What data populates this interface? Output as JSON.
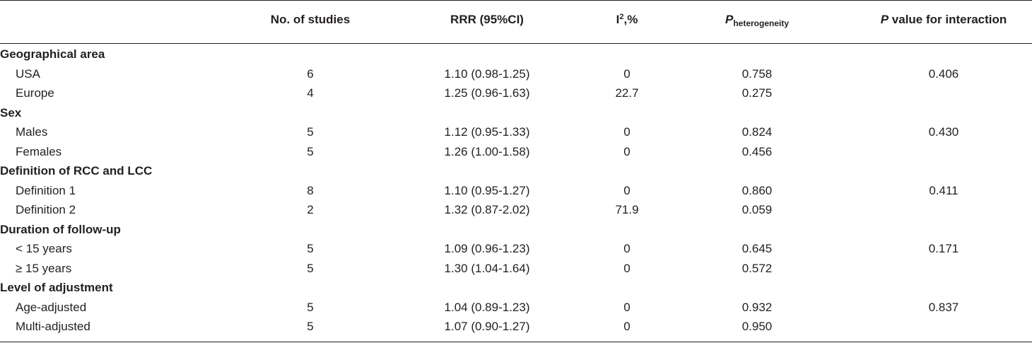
{
  "headers": {
    "studies": "No. of studies",
    "rrr": "RRR (95%CI)",
    "i2_base": "I",
    "i2_sup": "2",
    "i2_suffix": ",%",
    "phet_base": "P",
    "phet_sub": "heterogeneity",
    "pint_italic": "P",
    "pint_rest": " value for interaction"
  },
  "groups": [
    {
      "title": "Geographical area",
      "rows": [
        {
          "label": "USA",
          "studies": "6",
          "rrr": "1.10 (0.98-1.25)",
          "i2": "0",
          "phet": "0.758",
          "pint": "0.406"
        },
        {
          "label": "Europe",
          "studies": "4",
          "rrr": "1.25 (0.96-1.63)",
          "i2": "22.7",
          "phet": "0.275",
          "pint": ""
        }
      ]
    },
    {
      "title": "Sex",
      "rows": [
        {
          "label": "Males",
          "studies": "5",
          "rrr": "1.12 (0.95-1.33)",
          "i2": "0",
          "phet": "0.824",
          "pint": "0.430"
        },
        {
          "label": "Females",
          "studies": "5",
          "rrr": "1.26 (1.00-1.58)",
          "i2": "0",
          "phet": "0.456",
          "pint": ""
        }
      ]
    },
    {
      "title": "Definition of RCC and LCC",
      "rows": [
        {
          "label": "Definition 1",
          "studies": "8",
          "rrr": "1.10 (0.95-1.27)",
          "i2": "0",
          "phet": "0.860",
          "pint": "0.411"
        },
        {
          "label": "Definition 2",
          "studies": "2",
          "rrr": "1.32 (0.87-2.02)",
          "i2": "71.9",
          "phet": "0.059",
          "pint": ""
        }
      ]
    },
    {
      "title": "Duration of follow-up",
      "rows": [
        {
          "label": "< 15 years",
          "studies": "5",
          "rrr": "1.09 (0.96-1.23)",
          "i2": "0",
          "phet": "0.645",
          "pint": "0.171"
        },
        {
          "label": "≥ 15 years",
          "studies": "5",
          "rrr": "1.30 (1.04-1.64)",
          "i2": "0",
          "phet": "0.572",
          "pint": ""
        }
      ]
    },
    {
      "title": "Level of adjustment",
      "rows": [
        {
          "label": "Age-adjusted",
          "studies": "5",
          "rrr": "1.04 (0.89-1.23)",
          "i2": "0",
          "phet": "0.932",
          "pint": "0.837"
        },
        {
          "label": "Multi-adjusted",
          "studies": "5",
          "rrr": "1.07 (0.90-1.27)",
          "i2": "0",
          "phet": "0.950",
          "pint": ""
        }
      ]
    }
  ]
}
